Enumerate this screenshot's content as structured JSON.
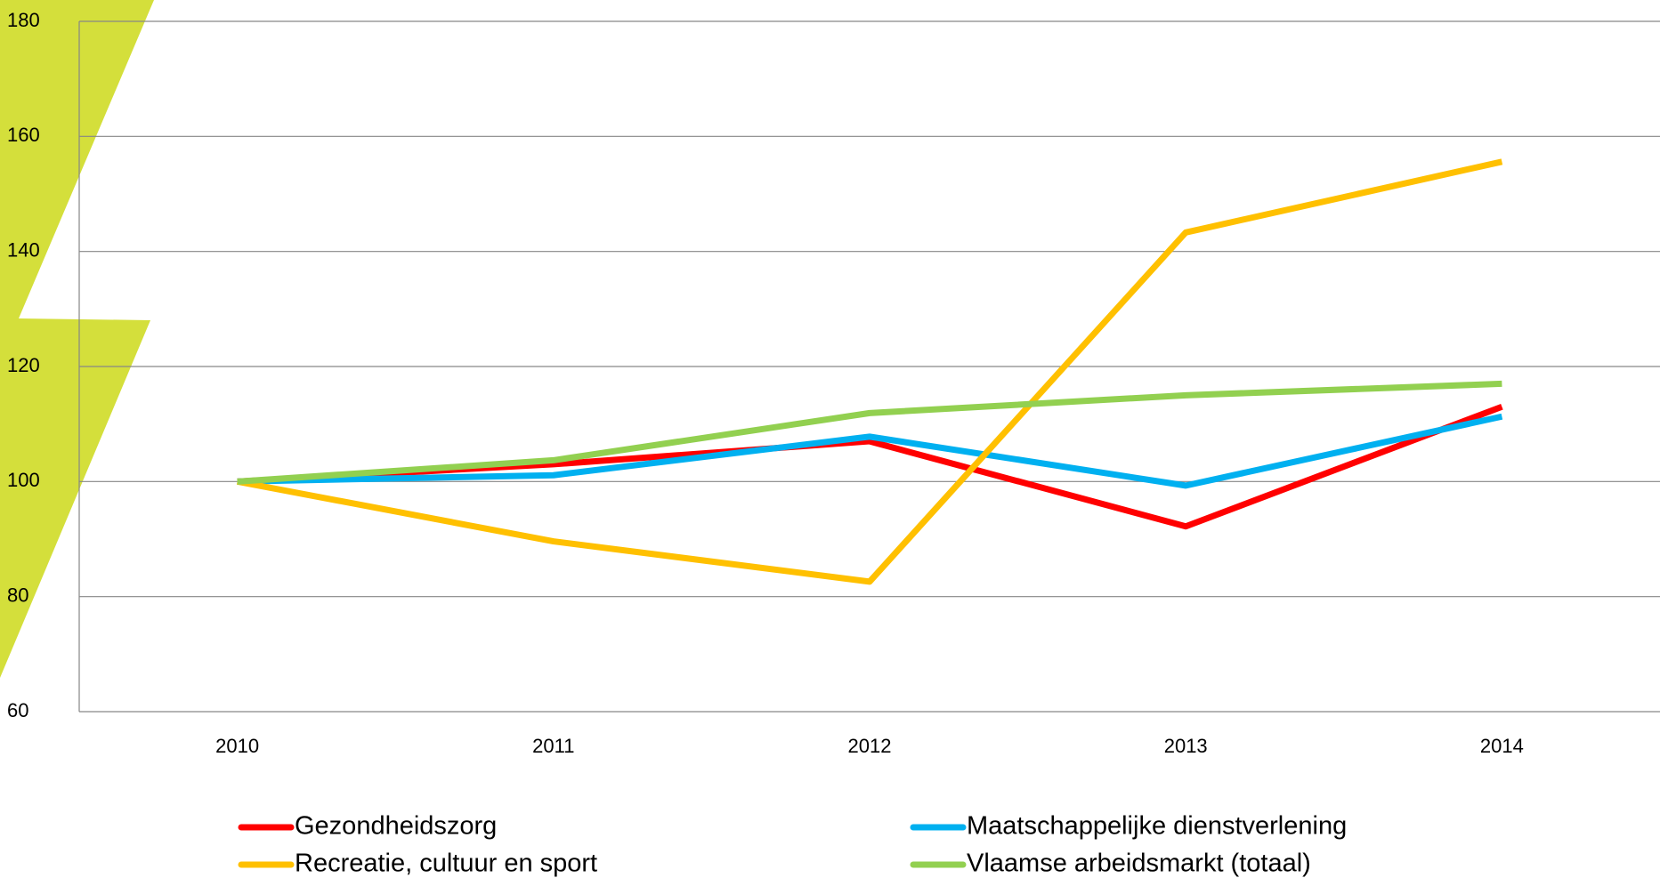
{
  "chart_data": {
    "type": "line",
    "categories": [
      "2010",
      "2011",
      "2012",
      "2013",
      "2014"
    ],
    "series": [
      {
        "name": "Gezondheidszorg",
        "color": "#ff0000",
        "values": [
          100,
          103,
          107,
          92.2,
          113
        ]
      },
      {
        "name": "Maatschappelijke dienstverlening",
        "color": "#00b0f0",
        "values": [
          100,
          101.1,
          107.8,
          99.3,
          111.3
        ]
      },
      {
        "name": "Recreatie, cultuur en sport",
        "color": "#ffc000",
        "values": [
          100,
          89.6,
          82.6,
          143.3,
          155.6
        ]
      },
      {
        "name": "Vlaamse arbeidsmarkt (totaal)",
        "color": "#92d050",
        "values": [
          100,
          103.7,
          111.9,
          115,
          117
        ]
      }
    ],
    "ylim": [
      60,
      180
    ],
    "yticks": [
      60,
      80,
      100,
      120,
      140,
      160,
      180
    ],
    "grid": true,
    "legend": "bottom"
  }
}
